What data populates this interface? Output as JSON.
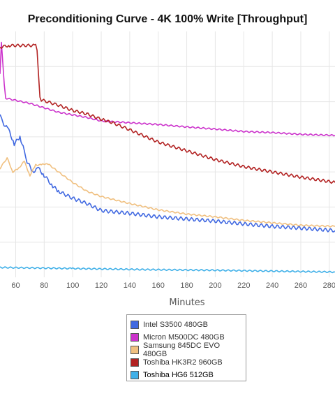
{
  "chart_data": {
    "type": "line",
    "title": "Preconditioning Curve - 4K 100% Write [Throughput]",
    "xlabel": "Minutes",
    "ylabel": "",
    "xlim": [
      49,
      284
    ],
    "ylim": [
      0,
      7
    ],
    "x_ticks": [
      60,
      80,
      100,
      120,
      140,
      160,
      180,
      200,
      220,
      240,
      260,
      280
    ],
    "y_grid_values": [
      1,
      2,
      3,
      4,
      5,
      6
    ],
    "grid": true,
    "legend_position": "bottom-center",
    "series": [
      {
        "name": "Intel S3500 480GB",
        "color": "#4169e1",
        "points": [
          [
            49,
            4.6
          ],
          [
            51,
            4.4
          ],
          [
            55,
            4.2
          ],
          [
            59,
            3.8
          ],
          [
            63,
            4.0
          ],
          [
            66,
            3.6
          ],
          [
            68,
            3.3
          ],
          [
            72,
            3.0
          ],
          [
            76,
            3.1
          ],
          [
            80,
            2.9
          ],
          [
            86,
            2.6
          ],
          [
            90,
            2.45
          ],
          [
            100,
            2.25
          ],
          [
            110,
            2.1
          ],
          [
            120,
            1.9
          ],
          [
            140,
            1.82
          ],
          [
            160,
            1.72
          ],
          [
            180,
            1.66
          ],
          [
            200,
            1.6
          ],
          [
            220,
            1.52
          ],
          [
            240,
            1.45
          ],
          [
            260,
            1.4
          ],
          [
            284,
            1.33
          ]
        ],
        "noise": 0.05
      },
      {
        "name": "Micron M500DC 480GB",
        "color": "#cc33cc",
        "points": [
          [
            49,
            5.8
          ],
          [
            50,
            6.7
          ],
          [
            52,
            5.5
          ],
          [
            53,
            5.1
          ],
          [
            70,
            4.95
          ],
          [
            90,
            4.7
          ],
          [
            110,
            4.55
          ],
          [
            120,
            4.45
          ],
          [
            140,
            4.4
          ],
          [
            160,
            4.35
          ],
          [
            180,
            4.28
          ],
          [
            200,
            4.22
          ],
          [
            220,
            4.15
          ],
          [
            240,
            4.12
          ],
          [
            260,
            4.07
          ],
          [
            284,
            4.04
          ]
        ],
        "noise": 0.02
      },
      {
        "name": "Samsung 845DC EVO 480GB",
        "color": "#f0c080",
        "points": [
          [
            49,
            3.1
          ],
          [
            54,
            3.4
          ],
          [
            58,
            3.0
          ],
          [
            62,
            3.1
          ],
          [
            66,
            3.3
          ],
          [
            70,
            2.9
          ],
          [
            74,
            3.2
          ],
          [
            78,
            3.2
          ],
          [
            82,
            3.25
          ],
          [
            90,
            3.0
          ],
          [
            100,
            2.7
          ],
          [
            110,
            2.45
          ],
          [
            120,
            2.3
          ],
          [
            140,
            2.1
          ],
          [
            160,
            1.92
          ],
          [
            180,
            1.8
          ],
          [
            200,
            1.72
          ],
          [
            220,
            1.62
          ],
          [
            240,
            1.55
          ],
          [
            260,
            1.48
          ],
          [
            284,
            1.45
          ]
        ],
        "noise": 0.02
      },
      {
        "name": "Toshiba HK3R2 960GB",
        "color": "#b22222",
        "points": [
          [
            49,
            6.55
          ],
          [
            55,
            6.6
          ],
          [
            74,
            6.6
          ],
          [
            75,
            6.5
          ],
          [
            77,
            5.1
          ],
          [
            78,
            5.05
          ],
          [
            90,
            4.9
          ],
          [
            100,
            4.75
          ],
          [
            110,
            4.65
          ],
          [
            120,
            4.5
          ],
          [
            128,
            4.4
          ],
          [
            140,
            4.2
          ],
          [
            160,
            3.85
          ],
          [
            180,
            3.6
          ],
          [
            200,
            3.35
          ],
          [
            220,
            3.15
          ],
          [
            240,
            3.0
          ],
          [
            260,
            2.85
          ],
          [
            284,
            2.7
          ]
        ],
        "noise": 0.04
      },
      {
        "name": "Toshiba HG6 512GB",
        "color": "#40b0e8",
        "points": [
          [
            49,
            0.28
          ],
          [
            100,
            0.25
          ],
          [
            150,
            0.22
          ],
          [
            200,
            0.2
          ],
          [
            250,
            0.17
          ],
          [
            284,
            0.15
          ]
        ],
        "noise": 0.02
      }
    ]
  }
}
